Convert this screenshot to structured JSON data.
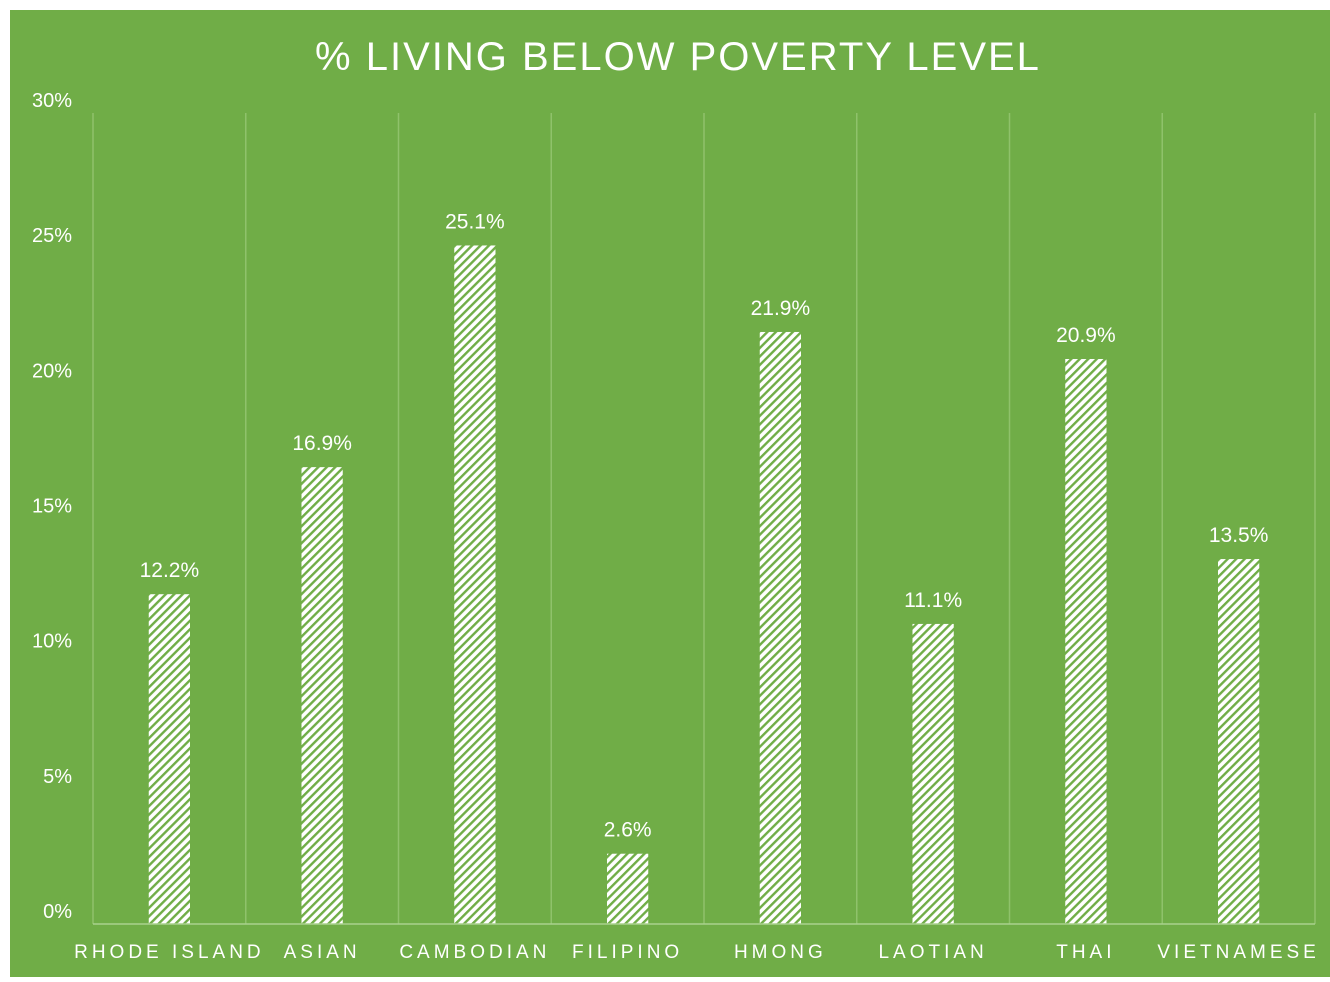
{
  "colors": {
    "background": "#70ad47",
    "text": "#ffffff",
    "gridline": "#8fc26b",
    "axis_line": "#a9d18e",
    "bar_fill": "#ffffff",
    "bar_hatch": "#70ad47"
  },
  "chart_data": {
    "type": "bar",
    "title": "% LIVING BELOW POVERTY LEVEL",
    "categories": [
      "RHODE ISLAND",
      "ASIAN",
      "CAMBODIAN",
      "FILIPINO",
      "HMONG",
      "LAOTIAN",
      "THAI",
      "VIETNAMESE"
    ],
    "values": [
      12.2,
      16.9,
      25.1,
      2.6,
      21.9,
      11.1,
      20.9,
      13.5
    ],
    "data_labels": [
      "12.2%",
      "16.9%",
      "25.1%",
      "2.6%",
      "21.9%",
      "11.1%",
      "20.9%",
      "13.5%"
    ],
    "y_ticks": [
      0,
      5,
      10,
      15,
      20,
      25,
      30
    ],
    "y_tick_labels": [
      "0%",
      "5%",
      "10%",
      "15%",
      "20%",
      "25%",
      "30%"
    ],
    "ylim": [
      0,
      30
    ],
    "xlabel": "",
    "ylabel": "",
    "grid": true,
    "gridlines": "vertical",
    "bar_pattern": "diagonal-hatch",
    "legend": "none"
  }
}
